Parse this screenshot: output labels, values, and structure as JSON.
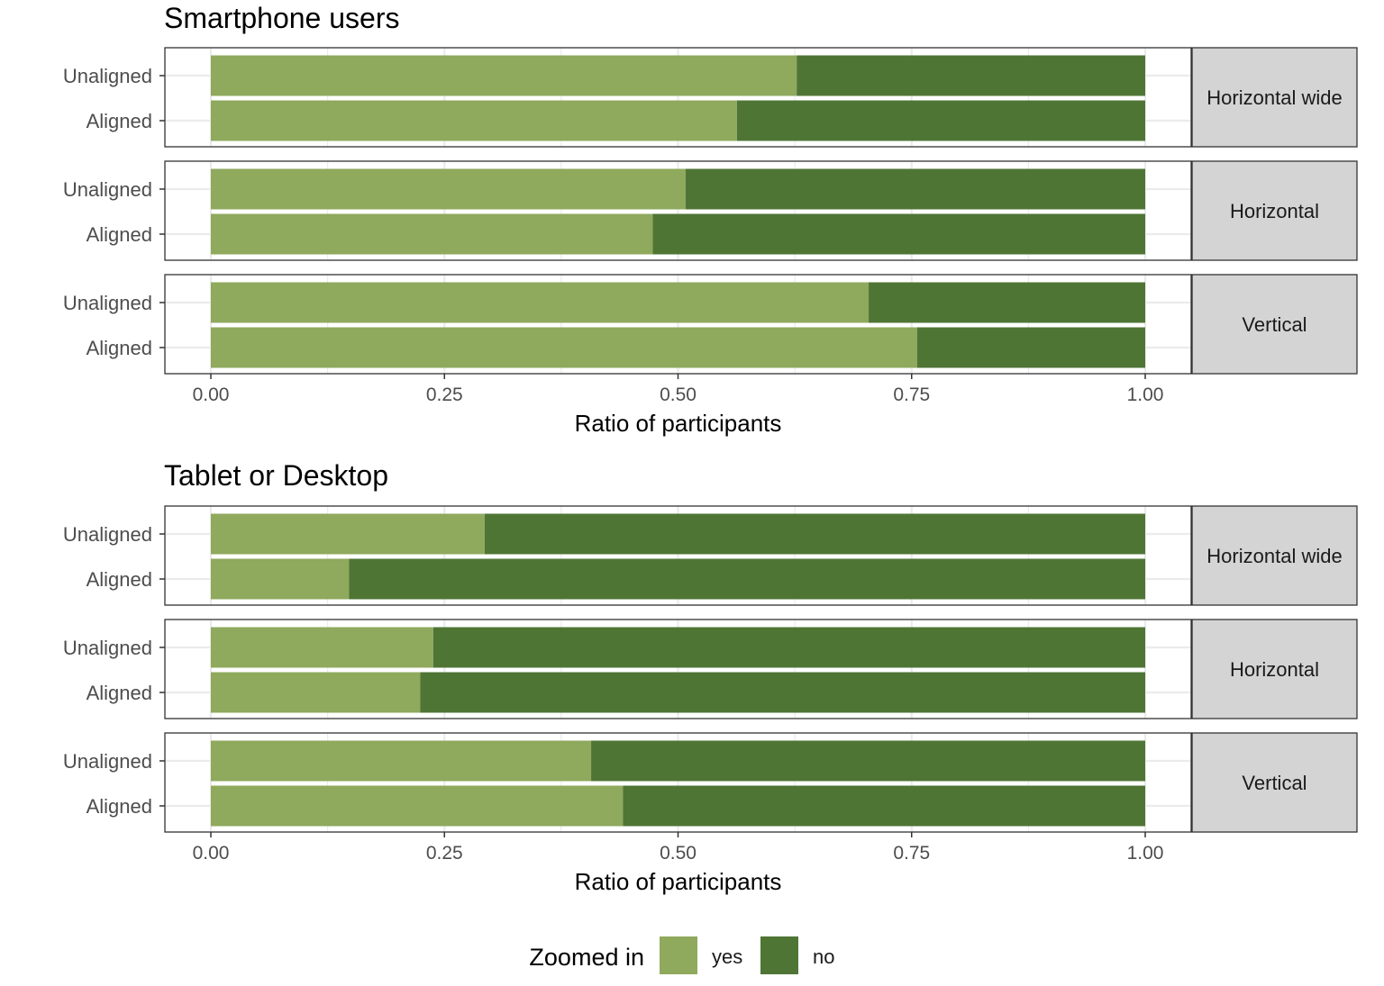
{
  "colors": {
    "yes": "#8fa95d",
    "no": "#4f7535",
    "strip_bg": "#d4d4d4",
    "grid": "#ebebeb",
    "border": "#333333"
  },
  "legend": {
    "title": "Zoomed in",
    "items": [
      {
        "key": "yes",
        "label": "yes"
      },
      {
        "key": "no",
        "label": "no"
      }
    ]
  },
  "chart_data": [
    {
      "type": "bar",
      "orientation": "horizontal",
      "stacked": true,
      "title": "Smartphone users",
      "xlabel": "Ratio of participants",
      "xlim": [
        0,
        1
      ],
      "xticks": [
        "0.00",
        "0.25",
        "0.50",
        "0.75",
        "1.00"
      ],
      "categories": [
        "Unaligned",
        "Aligned"
      ],
      "facets": [
        {
          "label": "Horizontal wide",
          "yes": [
            0.627,
            0.563
          ],
          "no": [
            0.373,
            0.437
          ]
        },
        {
          "label": "Horizontal",
          "yes": [
            0.508,
            0.473
          ],
          "no": [
            0.492,
            0.527
          ]
        },
        {
          "label": "Vertical",
          "yes": [
            0.704,
            0.756
          ],
          "no": [
            0.296,
            0.244
          ]
        }
      ]
    },
    {
      "type": "bar",
      "orientation": "horizontal",
      "stacked": true,
      "title": "Tablet or Desktop",
      "xlabel": "Ratio of participants",
      "xlim": [
        0,
        1
      ],
      "xticks": [
        "0.00",
        "0.25",
        "0.50",
        "0.75",
        "1.00"
      ],
      "categories": [
        "Unaligned",
        "Aligned"
      ],
      "facets": [
        {
          "label": "Horizontal wide",
          "yes": [
            0.293,
            0.148
          ],
          "no": [
            0.707,
            0.852
          ]
        },
        {
          "label": "Horizontal",
          "yes": [
            0.238,
            0.224
          ],
          "no": [
            0.762,
            0.776
          ]
        },
        {
          "label": "Vertical",
          "yes": [
            0.407,
            0.441
          ],
          "no": [
            0.593,
            0.559
          ]
        }
      ]
    }
  ]
}
